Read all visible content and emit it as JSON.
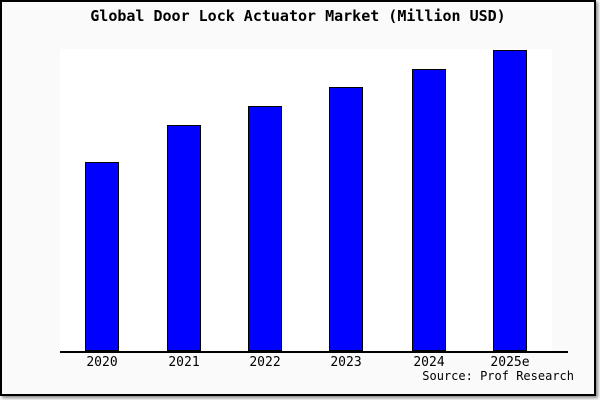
{
  "chart_data": {
    "type": "bar",
    "title": "Global Door Lock Actuator Market (Million USD)",
    "categories": [
      "2020",
      "2021",
      "2022",
      "2023",
      "2024",
      "2025e"
    ],
    "values": [
      62.8,
      75.1,
      81.4,
      87.7,
      93.7,
      100.0
    ],
    "values_note": "y-axis is unlabeled with no ticks or gridlines; values are relative bar heights indexed to 2025e = 100",
    "xlabel": "",
    "ylabel": "",
    "ylim": [
      0,
      100.3
    ],
    "grid": false,
    "legend": false,
    "source": "Source: Prof Research",
    "colors": {
      "bar_fill": "#0000ff",
      "bar_border": "#000000",
      "plot_background": "#ffffff",
      "page_background": "#fafafa",
      "frame_border": "#000000",
      "text": "#000000"
    }
  }
}
